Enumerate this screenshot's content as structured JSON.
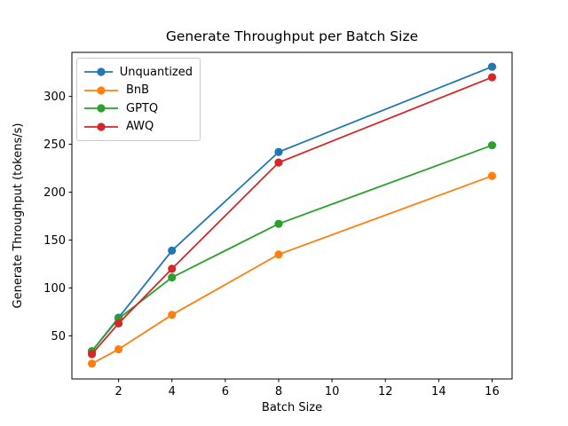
{
  "chart_data": {
    "type": "line",
    "title": "Generate Throughput per Batch Size",
    "xlabel": "Batch Size",
    "ylabel": "Generate Throughput (tokens/s)",
    "x": [
      1,
      2,
      4,
      8,
      16
    ],
    "series": [
      {
        "name": "Unquantized",
        "color": "#1f77b4",
        "values": [
          34,
          69,
          139,
          242,
          331
        ]
      },
      {
        "name": "BnB",
        "color": "#ff7f0e",
        "values": [
          21,
          36,
          72,
          135,
          217
        ]
      },
      {
        "name": "GPTQ",
        "color": "#2ca02c",
        "values": [
          34,
          68,
          111,
          167,
          249
        ]
      },
      {
        "name": "AWQ",
        "color": "#d62728",
        "values": [
          31,
          63,
          120,
          231,
          320
        ]
      }
    ],
    "xticks": [
      2,
      4,
      6,
      8,
      10,
      12,
      14,
      16
    ],
    "yticks": [
      50,
      100,
      150,
      200,
      250,
      300
    ],
    "xlim": [
      0.25,
      16.75
    ],
    "ylim": [
      5,
      346
    ],
    "grid": false,
    "marker": "circle",
    "legend_position": "upper-left",
    "frame_color": "#000000",
    "background_color": "#ffffff"
  }
}
